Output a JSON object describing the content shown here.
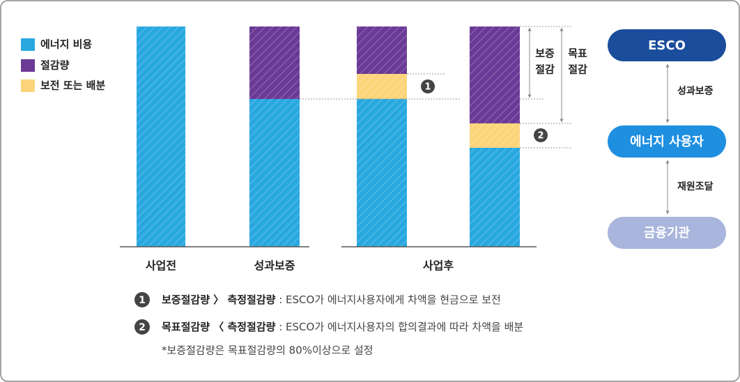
{
  "legend": [
    "에너지 비용",
    "절감량",
    "보전 또는 배분"
  ],
  "categories": [
    "사업전",
    "성과보증",
    "사업후"
  ],
  "markers": [
    "1",
    "2"
  ],
  "brackets": {
    "guarantee": [
      "보증",
      "절감"
    ],
    "target": [
      "목표",
      "절감"
    ]
  },
  "nodes": [
    "ESCO",
    "에너지 사용자",
    "금융기관"
  ],
  "edges": [
    "성과보증",
    "재원조달"
  ],
  "notes": [
    {
      "num": "1",
      "bold": "보증절감량 〉 측정절감량",
      "text": " : ESCO가 에너지사용자에게 차액을 현금으로 보전"
    },
    {
      "num": "2",
      "bold": "목표절감량 〈 측정절감량",
      "text": " : ESCO가 에너지사용자의 합의결과에 따라 차액을 배분"
    }
  ],
  "footnote": "*보증절감량은 목표절감량의 80%이상으로 설정"
}
